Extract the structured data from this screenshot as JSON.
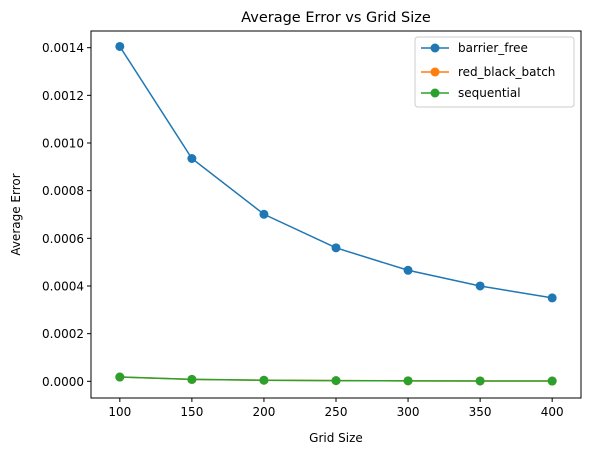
{
  "chart_data": {
    "type": "line",
    "title": "Average Error vs Grid Size",
    "xlabel": "Grid Size",
    "ylabel": "Average Error",
    "x": [
      100,
      150,
      200,
      250,
      300,
      350,
      400
    ],
    "xlim": [
      80,
      420
    ],
    "ylim": [
      -7e-05,
      0.00147
    ],
    "xticks": [
      100,
      150,
      200,
      250,
      300,
      350,
      400
    ],
    "yticks": [
      0.0,
      0.0002,
      0.0004,
      0.0006,
      0.0008,
      0.001,
      0.0012,
      0.0014
    ],
    "ytick_labels": [
      "0.0000",
      "0.0002",
      "0.0004",
      "0.0006",
      "0.0008",
      "0.0010",
      "0.0012",
      "0.0014"
    ],
    "grid": false,
    "legend_position": "top-right",
    "series": [
      {
        "name": "barrier_free",
        "color": "#1f77b4",
        "marker": "circle",
        "values": [
          0.001405,
          0.000935,
          0.000701,
          0.00056,
          0.000466,
          0.0004,
          0.00035
        ]
      },
      {
        "name": "red_black_batch",
        "color": "#ff7f0e",
        "marker": "circle",
        "values": [
          1.8e-05,
          8e-06,
          4.5e-06,
          2.9e-06,
          2e-06,
          1.5e-06,
          1.1e-06
        ]
      },
      {
        "name": "sequential",
        "color": "#2ca02c",
        "marker": "circle",
        "values": [
          1.8e-05,
          8e-06,
          4.5e-06,
          2.9e-06,
          2e-06,
          1.5e-06,
          1.1e-06
        ]
      }
    ]
  }
}
